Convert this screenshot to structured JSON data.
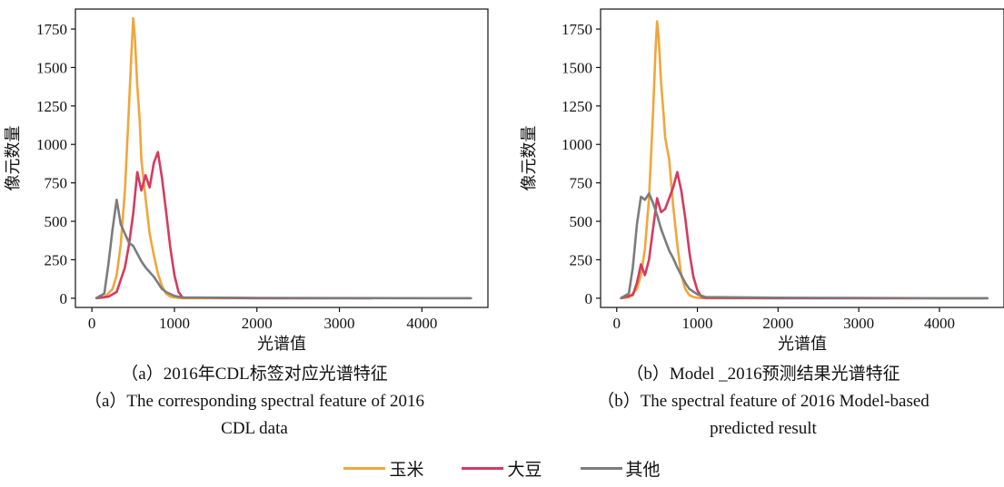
{
  "colors": {
    "corn": "#f0a63c",
    "soybean": "#d53a5e",
    "other": "#7c7c7c"
  },
  "legend": [
    "玉米",
    "大豆",
    "其他"
  ],
  "chart_data": [
    {
      "type": "line",
      "xlabel": "光谱值",
      "ylabel": "像元数量",
      "xlim": [
        -200,
        4800
      ],
      "ylim": [
        -60,
        1880
      ],
      "xticks": [
        0,
        1000,
        2000,
        3000,
        4000
      ],
      "yticks": [
        0,
        250,
        500,
        750,
        1000,
        1250,
        1500,
        1750
      ],
      "caption_zh": "（a）2016年CDL标签对应光谱特征",
      "caption_en": [
        "（a）The corresponding spectral feature of 2016",
        "CDL data"
      ],
      "series": [
        {
          "name": "玉米",
          "x": [
            50,
            150,
            250,
            300,
            350,
            400,
            450,
            480,
            500,
            520,
            550,
            580,
            600,
            650,
            700,
            750,
            800,
            850,
            900,
            950,
            1000,
            1050,
            1100,
            2000,
            3000,
            3400
          ],
          "values": [
            0,
            5,
            60,
            150,
            350,
            700,
            1250,
            1600,
            1820,
            1700,
            1380,
            1150,
            900,
            650,
            420,
            280,
            160,
            80,
            30,
            10,
            5,
            2,
            0,
            0,
            0,
            0
          ]
        },
        {
          "name": "大豆",
          "x": [
            50,
            200,
            300,
            350,
            400,
            450,
            500,
            550,
            600,
            650,
            700,
            750,
            800,
            850,
            900,
            950,
            1000,
            1050,
            1100,
            2000,
            3000,
            3400
          ],
          "values": [
            0,
            10,
            40,
            120,
            200,
            350,
            550,
            820,
            700,
            800,
            720,
            880,
            950,
            780,
            560,
            330,
            150,
            40,
            5,
            0,
            0,
            0
          ]
        },
        {
          "name": "其他",
          "x": [
            50,
            150,
            200,
            250,
            300,
            350,
            400,
            450,
            500,
            550,
            600,
            650,
            700,
            750,
            800,
            850,
            900,
            1000,
            1100,
            2000,
            3000,
            4000,
            4600
          ],
          "values": [
            0,
            30,
            220,
            450,
            640,
            480,
            420,
            360,
            340,
            290,
            240,
            200,
            170,
            140,
            100,
            60,
            40,
            15,
            5,
            2,
            1,
            0,
            0
          ]
        }
      ]
    },
    {
      "type": "line",
      "xlabel": "光谱值",
      "ylabel": "像元数量",
      "xlim": [
        -200,
        4800
      ],
      "ylim": [
        -60,
        1880
      ],
      "xticks": [
        0,
        1000,
        2000,
        3000,
        4000
      ],
      "yticks": [
        0,
        250,
        500,
        750,
        1000,
        1250,
        1500,
        1750
      ],
      "caption_zh": "（b）Model _2016预测结果光谱特征",
      "caption_en": [
        "（b）The spectral feature of 2016 Model-based",
        "predicted result"
      ],
      "series": [
        {
          "name": "玉米",
          "x": [
            50,
            150,
            250,
            300,
            350,
            400,
            450,
            480,
            500,
            520,
            550,
            580,
            600,
            650,
            700,
            750,
            800,
            850,
            900,
            950,
            1000,
            1100,
            2000,
            4600
          ],
          "values": [
            0,
            5,
            60,
            150,
            320,
            650,
            1200,
            1600,
            1800,
            1700,
            1400,
            1200,
            1050,
            900,
            600,
            350,
            150,
            60,
            20,
            8,
            3,
            0,
            0,
            0
          ]
        },
        {
          "name": "大豆",
          "x": [
            50,
            200,
            250,
            300,
            350,
            400,
            450,
            500,
            550,
            600,
            650,
            700,
            750,
            800,
            850,
            900,
            950,
            1000,
            1050,
            1100,
            2000,
            4600
          ],
          "values": [
            0,
            20,
            100,
            220,
            150,
            250,
            450,
            650,
            560,
            580,
            650,
            720,
            820,
            700,
            520,
            300,
            140,
            50,
            10,
            2,
            0,
            0
          ]
        },
        {
          "name": "其他",
          "x": [
            50,
            150,
            200,
            250,
            300,
            350,
            400,
            450,
            500,
            550,
            600,
            650,
            700,
            750,
            800,
            850,
            900,
            1000,
            1100,
            2000,
            3000,
            4000,
            4600
          ],
          "values": [
            0,
            30,
            200,
            480,
            660,
            640,
            680,
            620,
            540,
            450,
            380,
            310,
            260,
            200,
            150,
            100,
            60,
            25,
            8,
            3,
            2,
            0,
            0
          ]
        }
      ]
    }
  ]
}
